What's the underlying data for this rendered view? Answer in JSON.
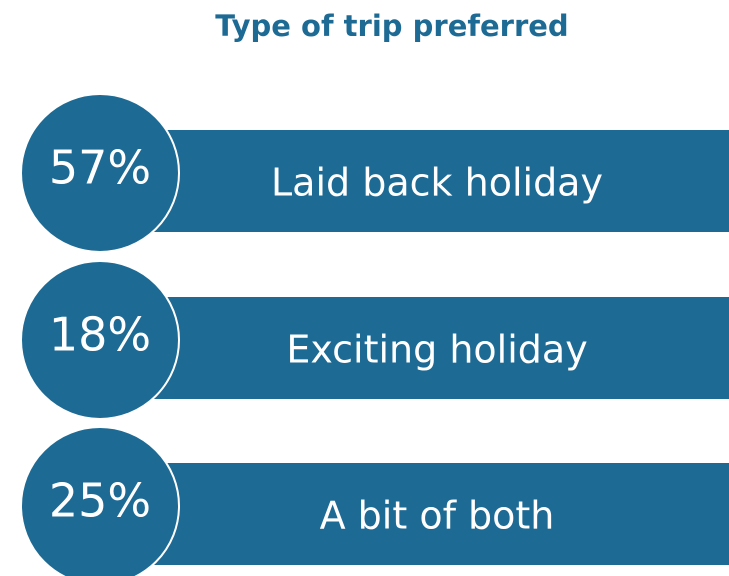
{
  "chart_data": {
    "type": "stat-list",
    "title": "Type of trip preferred",
    "categories": [
      "Laid back holiday",
      "Exciting holiday",
      "A bit of both"
    ],
    "values": [
      57,
      18,
      25
    ],
    "value_labels": [
      "57%",
      "18%",
      "25%"
    ],
    "color": "#1d6a94"
  }
}
